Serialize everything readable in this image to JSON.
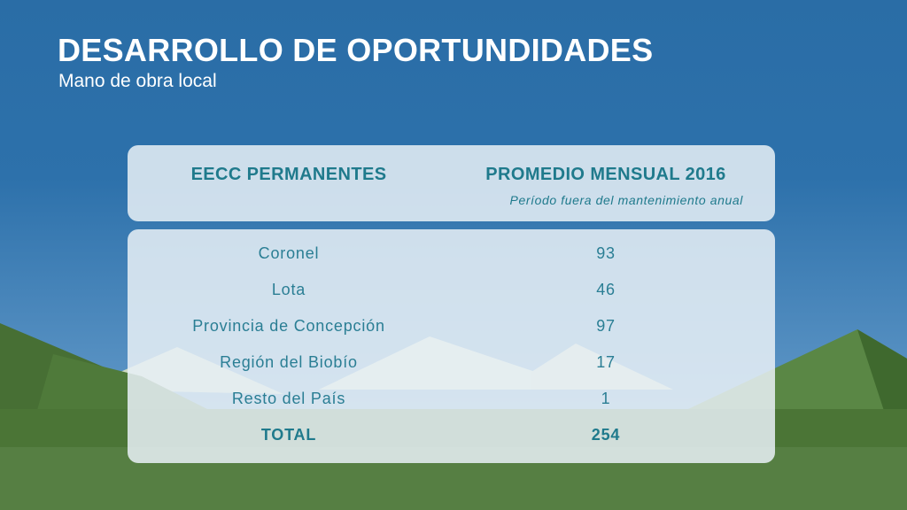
{
  "slide": {
    "title": "DESARROLLO DE OPORTUNDIDADES",
    "subtitle": "Mano de obra local"
  },
  "table": {
    "headers": {
      "left": "EECC PERMANENTES",
      "right": "PROMEDIO MENSUAL 2016",
      "right_note": "Período fuera del mantenimiento anual"
    },
    "rows": [
      {
        "label": "Coronel",
        "value": "93"
      },
      {
        "label": "Lota",
        "value": "46"
      },
      {
        "label": "Provincia de Concepción",
        "value": "97"
      },
      {
        "label": "Región del Biobío",
        "value": "17"
      },
      {
        "label": "Resto del País",
        "value": "1"
      },
      {
        "label": "TOTAL",
        "value": "254"
      }
    ]
  },
  "colors": {
    "sky_top": "#2a6da6",
    "sky_bottom": "#5f96c6",
    "grass": "#567f43",
    "mountain_dark": "#3f6b2f",
    "mountain_light": "#d9e3cc",
    "accent_text": "#1f7a8c"
  }
}
